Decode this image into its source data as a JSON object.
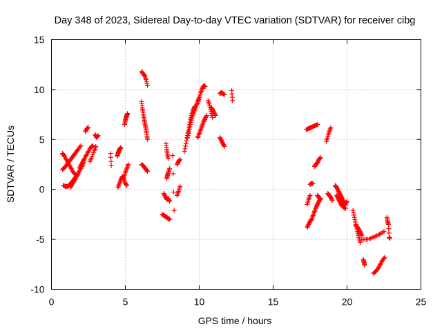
{
  "chart_data": {
    "type": "scatter",
    "title": "Day 348 of 2023, Sidereal Day-to-day VTEC variation (SDTVAR) for receiver cibg",
    "xlabel": "GPS time / hours",
    "ylabel": "SDTVAR / TECUs",
    "xlim": [
      0,
      25
    ],
    "ylim": [
      -10,
      15
    ],
    "xticks": [
      0,
      5,
      10,
      15,
      20,
      25
    ],
    "yticks": [
      -10,
      -5,
      0,
      5,
      10,
      15
    ],
    "grid": true,
    "marker": "+",
    "marker_color": "#ff0000",
    "arcs": [
      {
        "x": [
          0.75,
          0.9,
          1.05,
          1.2,
          1.35,
          1.5,
          1.65,
          1.8,
          2.0
        ],
        "y": [
          2.0,
          2.2,
          2.5,
          2.8,
          3.1,
          3.4,
          3.7,
          4.0,
          4.4
        ]
      },
      {
        "x": [
          0.75,
          0.85,
          1.0,
          1.15,
          1.3,
          1.45,
          1.6
        ],
        "y": [
          3.6,
          3.4,
          3.0,
          2.6,
          2.2,
          1.8,
          1.5
        ]
      },
      {
        "x": [
          0.8,
          0.95,
          1.1,
          1.25,
          1.4,
          1.6,
          1.8,
          2.0,
          2.2
        ],
        "y": [
          0.4,
          0.3,
          0.3,
          0.5,
          0.8,
          1.2,
          1.6,
          2.1,
          2.6
        ]
      },
      {
        "x": [
          1.3,
          1.45,
          1.6,
          1.75,
          1.9,
          2.05,
          2.2
        ],
        "y": [
          0.2,
          0.6,
          1.0,
          1.4,
          1.9,
          2.4,
          2.9
        ]
      },
      {
        "x": [
          1.9,
          2.05,
          2.2,
          2.35,
          2.5,
          2.65,
          2.8
        ],
        "y": [
          2.2,
          2.6,
          3.0,
          3.4,
          3.8,
          4.2,
          4.4
        ]
      },
      {
        "x": [
          2.3,
          2.4,
          2.5
        ],
        "y": [
          5.8,
          6.1,
          6.2
        ]
      },
      {
        "x": [
          2.6,
          2.75,
          2.9,
          3.0
        ],
        "y": [
          2.8,
          3.3,
          3.9,
          4.3
        ]
      },
      {
        "x": [
          2.95,
          3.05,
          3.15
        ],
        "y": [
          5.5,
          5.2,
          5.4
        ]
      },
      {
        "x": [
          4.0,
          4.05
        ],
        "y": [
          3.6,
          2.4
        ]
      },
      {
        "x": [
          4.45,
          4.5,
          4.55,
          4.6,
          4.65,
          4.7
        ],
        "y": [
          3.3,
          3.6,
          3.8,
          4.0,
          4.1,
          4.2
        ]
      },
      {
        "x": [
          4.5,
          4.6,
          4.7,
          4.8,
          4.9,
          5.0,
          5.1
        ],
        "y": [
          0.2,
          0.6,
          1.0,
          1.3,
          1.0,
          0.6,
          0.4
        ]
      },
      {
        "x": [
          4.9,
          5.0,
          5.1,
          5.2
        ],
        "y": [
          1.2,
          1.7,
          2.1,
          2.5
        ]
      },
      {
        "x": [
          4.95,
          5.0,
          5.05,
          5.1,
          5.15
        ],
        "y": [
          6.5,
          6.9,
          7.2,
          7.4,
          7.6
        ]
      },
      {
        "x": [
          6.1,
          6.2,
          6.3,
          6.4,
          6.5
        ],
        "y": [
          11.8,
          11.6,
          11.4,
          11.0,
          10.4
        ]
      },
      {
        "x": [
          6.1,
          6.15,
          6.2,
          6.25,
          6.3,
          6.35,
          6.4,
          6.45,
          6.5
        ],
        "y": [
          8.8,
          8.2,
          7.7,
          7.2,
          6.8,
          6.4,
          6.0,
          5.5,
          5.0
        ]
      },
      {
        "x": [
          6.1,
          6.2,
          6.3,
          6.4,
          6.5
        ],
        "y": [
          2.5,
          2.4,
          2.2,
          2.0,
          1.8
        ]
      },
      {
        "x": [
          7.5,
          7.6,
          7.7,
          7.8,
          7.9,
          8.0
        ],
        "y": [
          -2.5,
          -2.6,
          -2.7,
          -2.8,
          -2.9,
          -3.0
        ]
      },
      {
        "x": [
          7.6,
          7.7,
          7.8,
          7.9,
          8.0
        ],
        "y": [
          -0.4,
          -0.7,
          -1.0,
          -0.9,
          -1.2
        ]
      },
      {
        "x": [
          7.75,
          7.8,
          7.85,
          7.9
        ],
        "y": [
          4.6,
          4.0,
          3.5,
          3.1
        ]
      },
      {
        "x": [
          7.8,
          7.85,
          7.9,
          8.0
        ],
        "y": [
          1.1,
          1.4,
          1.7,
          2.1
        ]
      },
      {
        "x": [
          8.2,
          8.3
        ],
        "y": [
          3.4,
          -2.1
        ]
      },
      {
        "x": [
          8.5,
          8.6,
          8.7
        ],
        "y": [
          2.5,
          2.8,
          3.0
        ]
      },
      {
        "x": [
          8.5,
          8.6,
          8.7
        ],
        "y": [
          -0.6,
          -0.2,
          0.3
        ]
      },
      {
        "x": [
          9.0,
          9.1,
          9.2,
          9.3,
          9.4,
          9.5,
          9.6,
          9.7
        ],
        "y": [
          3.8,
          4.6,
          5.4,
          6.2,
          7.0,
          7.6,
          8.0,
          8.3
        ]
      },
      {
        "x": [
          9.2,
          9.3,
          9.4,
          9.5,
          9.6,
          9.7,
          9.8,
          9.9,
          10.0
        ],
        "y": [
          5.2,
          5.8,
          6.5,
          7.1,
          7.6,
          8.0,
          8.4,
          8.8,
          9.2
        ]
      },
      {
        "x": [
          9.9,
          10.0,
          10.1,
          10.2,
          10.3,
          10.4
        ],
        "y": [
          8.6,
          9.2,
          9.7,
          10.1,
          10.4,
          10.3
        ]
      },
      {
        "x": [
          9.9,
          10.0,
          10.1,
          10.2,
          10.3,
          10.4,
          10.5
        ],
        "y": [
          5.2,
          5.6,
          6.0,
          6.4,
          6.8,
          7.1,
          7.4
        ]
      },
      {
        "x": [
          10.6,
          10.7,
          10.8,
          10.9
        ],
        "y": [
          8.9,
          8.4,
          7.8,
          7.2
        ]
      },
      {
        "x": [
          10.8,
          10.9,
          11.0,
          11.1
        ],
        "y": [
          8.2,
          8.0,
          7.7,
          7.4
        ]
      },
      {
        "x": [
          11.4,
          11.5,
          11.6,
          11.7
        ],
        "y": [
          5.2,
          4.9,
          4.6,
          4.3
        ]
      },
      {
        "x": [
          11.4,
          11.5,
          11.6,
          11.7
        ],
        "y": [
          9.6,
          9.7,
          9.6,
          9.5
        ]
      },
      {
        "x": [
          12.2,
          12.25
        ],
        "y": [
          9.9,
          8.9
        ]
      },
      {
        "x": [
          17.25,
          17.4,
          17.55,
          17.7,
          17.85,
          18.0
        ],
        "y": [
          6.0,
          6.1,
          6.2,
          6.3,
          6.4,
          6.5
        ]
      },
      {
        "x": [
          17.3,
          17.4,
          17.5
        ],
        "y": [
          -1.5,
          -1.0,
          -0.6
        ]
      },
      {
        "x": [
          17.3,
          17.4,
          17.5,
          17.6,
          17.7,
          17.8,
          17.9,
          18.0,
          18.1,
          18.2
        ],
        "y": [
          -3.8,
          -3.5,
          -3.2,
          -3.0,
          -2.6,
          -2.2,
          -1.8,
          -1.5,
          -1.2,
          -0.9
        ]
      },
      {
        "x": [
          17.5,
          17.6,
          17.7
        ],
        "y": [
          0.5,
          0.6,
          0.6
        ]
      },
      {
        "x": [
          17.8,
          17.9,
          18.0,
          18.1,
          18.2
        ],
        "y": [
          2.3,
          2.5,
          2.7,
          3.0,
          3.2
        ]
      },
      {
        "x": [
          18.0,
          18.1,
          18.2
        ],
        "y": [
          -0.6,
          -0.8,
          -1.0
        ]
      },
      {
        "x": [
          18.6,
          18.7,
          18.8,
          18.9
        ],
        "y": [
          4.8,
          5.3,
          5.8,
          6.2
        ]
      },
      {
        "x": [
          18.7,
          18.8,
          18.9,
          19.0
        ],
        "y": [
          -0.4,
          -0.6,
          -0.8,
          -1.1
        ]
      },
      {
        "x": [
          19.2,
          19.3,
          19.4,
          19.5,
          19.6,
          19.7,
          19.8,
          19.9
        ],
        "y": [
          0.4,
          0.2,
          -0.1,
          -0.4,
          -0.7,
          -1.0,
          -1.3,
          -1.6
        ]
      },
      {
        "x": [
          19.3,
          19.4,
          19.5,
          19.6,
          19.7,
          19.8,
          19.9
        ],
        "y": [
          -0.6,
          -0.9,
          -1.2,
          -1.5,
          -1.7,
          -1.8,
          -1.9
        ]
      },
      {
        "x": [
          19.5,
          19.6,
          19.7,
          19.8,
          19.9,
          20.0
        ],
        "y": [
          -1.0,
          -1.2,
          -1.4,
          -1.6,
          -1.4,
          -1.2
        ]
      },
      {
        "x": [
          20.4,
          20.5,
          20.6,
          20.7,
          20.8,
          20.9
        ],
        "y": [
          -2.1,
          -2.8,
          -3.5,
          -4.2,
          -4.8,
          -5.3
        ]
      },
      {
        "x": [
          20.6,
          20.7,
          20.8,
          20.9,
          21.0
        ],
        "y": [
          -3.6,
          -3.8,
          -4.0,
          -4.3,
          -4.6
        ]
      },
      {
        "x": [
          21.0,
          21.3,
          21.6,
          21.9,
          22.2,
          22.5
        ],
        "y": [
          -5.0,
          -5.0,
          -4.9,
          -4.7,
          -4.5,
          -4.2
        ]
      },
      {
        "x": [
          21.1,
          21.15,
          21.2
        ],
        "y": [
          -7.0,
          -7.3,
          -7.6
        ]
      },
      {
        "x": [
          21.8,
          21.95,
          22.1,
          22.25,
          22.4,
          22.55
        ],
        "y": [
          -8.4,
          -8.2,
          -7.9,
          -7.5,
          -7.1,
          -6.8
        ]
      },
      {
        "x": [
          22.7,
          22.75,
          22.8,
          22.85,
          22.9
        ],
        "y": [
          -2.8,
          -3.2,
          -3.5,
          -4.8,
          -4.9
        ]
      }
    ]
  }
}
